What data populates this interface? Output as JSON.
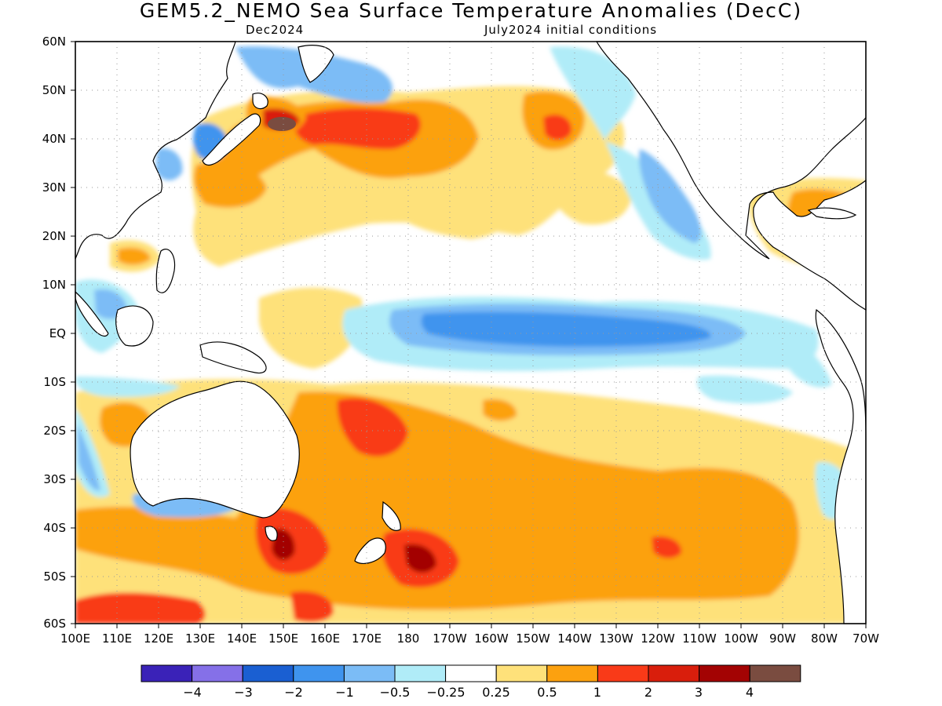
{
  "header": {
    "title": "GEM5.2_NEMO Sea Surface Temperature Anomalies (DecC)",
    "subtitle_left": "Dec2024",
    "subtitle_right": "July2024 initial conditions"
  },
  "lat_labels": [
    "60N",
    "50N",
    "40N",
    "30N",
    "20N",
    "10N",
    "EQ",
    "10S",
    "20S",
    "30S",
    "40S",
    "50S",
    "60S"
  ],
  "lon_labels": [
    "100E",
    "110E",
    "120E",
    "130E",
    "140E",
    "150E",
    "160E",
    "170E",
    "180",
    "170W",
    "160W",
    "150W",
    "140W",
    "130W",
    "120W",
    "110W",
    "100W",
    "90W",
    "80W",
    "70W"
  ],
  "colorbar": {
    "colors": [
      "#3a22b8",
      "#8570e8",
      "#1a5fd2",
      "#3f94ee",
      "#7bbcf6",
      "#b0ecf8",
      "#ffffff",
      "#fee17a",
      "#fca10f",
      "#f93a18",
      "#d91e0c",
      "#a30303",
      "#7a4c40"
    ],
    "labels": [
      "−4",
      "−3",
      "−2",
      "−1",
      "−0.5",
      "−0.25",
      "0.25",
      "0.5",
      "1",
      "2",
      "3",
      "4"
    ]
  },
  "palette": {
    "dark_blue": "#1a5fd2",
    "blue": "#3f94ee",
    "light_blue": "#7bbcf6",
    "pale_blue": "#b0ecf8",
    "yellow": "#fee17a",
    "orange": "#fca10f",
    "red": "#f93a18",
    "dark_red": "#d91e0c",
    "maroon": "#a30303",
    "brown": "#7a4c40"
  }
}
